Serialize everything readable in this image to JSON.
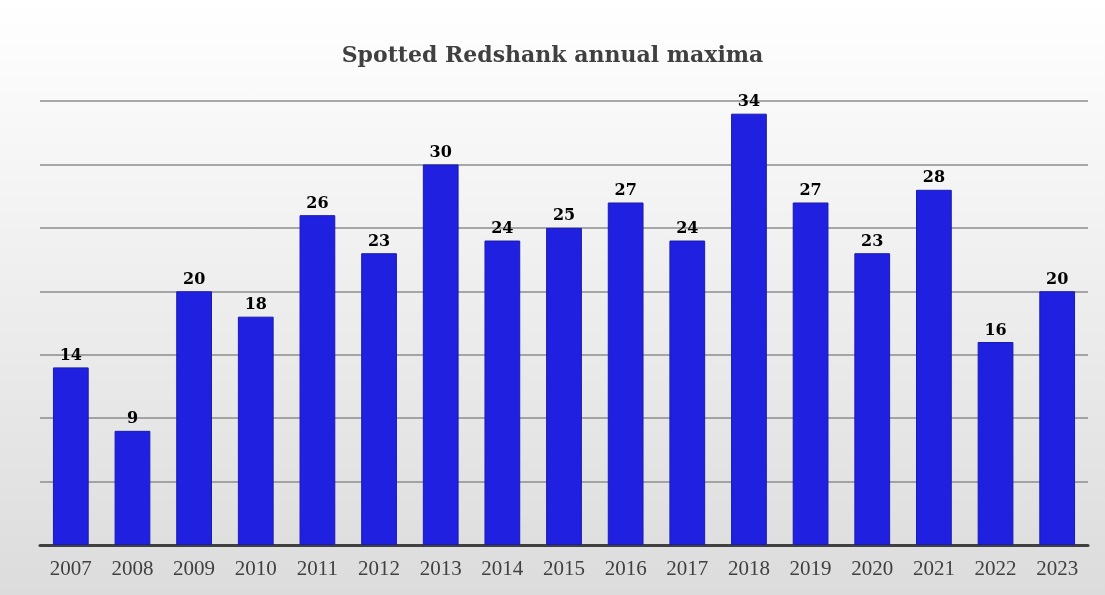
{
  "chart_data": {
    "type": "bar",
    "title": "Spotted Redshank annual maxima",
    "categories": [
      "2007",
      "2008",
      "2009",
      "2010",
      "2011",
      "2012",
      "2013",
      "2014",
      "2015",
      "2016",
      "2017",
      "2018",
      "2019",
      "2020",
      "2021",
      "2022",
      "2023"
    ],
    "values": [
      14,
      9,
      20,
      18,
      26,
      23,
      30,
      24,
      25,
      27,
      24,
      34,
      27,
      23,
      28,
      16,
      20
    ],
    "color": "#2020e0",
    "data_labels": true,
    "grid": "y",
    "tick_labels": "x"
  }
}
